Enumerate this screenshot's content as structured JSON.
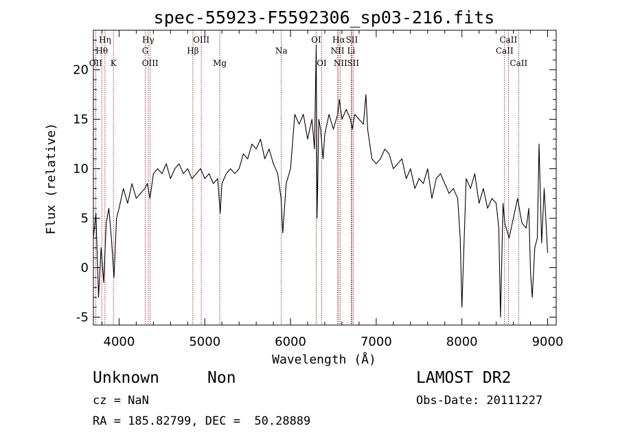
{
  "chart_data": {
    "type": "line",
    "title": "spec-55923-F5592306_sp03-216.fits",
    "xlabel": "Wavelength (Å)",
    "ylabel": "Flux (relative)",
    "xlim": [
      3700,
      9100
    ],
    "ylim": [
      -5.8,
      24
    ],
    "xticks": [
      4000,
      5000,
      6000,
      7000,
      8000,
      9000
    ],
    "yticks": [
      -5,
      0,
      5,
      10,
      15,
      20
    ],
    "grid": false,
    "series": [
      {
        "x": [
          3700,
          3730,
          3760,
          3790,
          3820,
          3850,
          3880,
          3910,
          3940,
          3970,
          4000,
          4050,
          4100,
          4150,
          4200,
          4250,
          4300,
          4330,
          4360,
          4400,
          4450,
          4500,
          4550,
          4600,
          4650,
          4700,
          4750,
          4800,
          4850,
          4900,
          4950,
          5000,
          5050,
          5100,
          5150,
          5180,
          5200,
          5250,
          5300,
          5350,
          5400,
          5450,
          5500,
          5550,
          5600,
          5650,
          5700,
          5750,
          5800,
          5850,
          5890,
          5910,
          5950,
          6000,
          6050,
          6100,
          6150,
          6200,
          6250,
          6280,
          6300,
          6310,
          6330,
          6350,
          6380,
          6400,
          6450,
          6500,
          6550,
          6570,
          6600,
          6650,
          6700,
          6720,
          6750,
          6800,
          6850,
          6880,
          6900,
          6950,
          7000,
          7050,
          7100,
          7150,
          7200,
          7250,
          7300,
          7350,
          7400,
          7450,
          7500,
          7550,
          7600,
          7650,
          7700,
          7750,
          7800,
          7850,
          7900,
          7950,
          7980,
          8000,
          8050,
          8100,
          8150,
          8200,
          8250,
          8300,
          8350,
          8400,
          8430,
          8450,
          8480,
          8500,
          8550,
          8600,
          8650,
          8700,
          8750,
          8780,
          8800,
          8820,
          8850,
          8880,
          8900,
          8930,
          8960,
          9000
        ],
        "y": [
          3.0,
          5.5,
          -3.0,
          2.0,
          -1.5,
          4.5,
          6.0,
          3.0,
          -1.0,
          5.0,
          6.0,
          8.0,
          6.5,
          8.5,
          7.0,
          7.5,
          8.0,
          8.5,
          7.0,
          9.5,
          10.0,
          9.5,
          10.5,
          9.0,
          10.0,
          10.5,
          9.5,
          10.0,
          9.0,
          9.5,
          10.0,
          9.0,
          9.5,
          8.5,
          9.0,
          5.5,
          8.5,
          9.5,
          10.0,
          9.5,
          10.0,
          11.5,
          11.0,
          12.5,
          12.0,
          13.0,
          11.0,
          12.0,
          10.5,
          9.5,
          7.0,
          3.5,
          8.5,
          10.0,
          15.5,
          14.5,
          15.5,
          13.0,
          15.0,
          12.0,
          22.5,
          5.0,
          15.0,
          14.0,
          11.0,
          13.5,
          15.5,
          14.0,
          15.5,
          17.0,
          15.0,
          16.0,
          15.0,
          14.0,
          15.5,
          15.0,
          14.5,
          17.5,
          14.0,
          11.0,
          10.5,
          11.0,
          12.0,
          11.5,
          10.0,
          10.5,
          11.0,
          9.0,
          10.0,
          8.0,
          9.0,
          8.5,
          10.0,
          7.0,
          9.0,
          9.5,
          8.5,
          7.5,
          8.0,
          7.0,
          3.0,
          -4.0,
          9.0,
          8.0,
          9.5,
          6.5,
          8.0,
          6.0,
          7.0,
          6.5,
          4.0,
          -5.0,
          6.5,
          4.5,
          3.0,
          5.0,
          7.0,
          4.5,
          4.0,
          6.0,
          -0.5,
          -3.0,
          2.0,
          3.0,
          12.5,
          2.5,
          8.0,
          1.5
        ]
      }
    ],
    "lines": [
      {
        "name": "OII",
        "x": 3727,
        "row": 3
      },
      {
        "name": "Hθ",
        "x": 3798,
        "row": 2
      },
      {
        "name": "Hη",
        "x": 3835,
        "row": 1
      },
      {
        "name": "K",
        "x": 3934,
        "row": 3
      },
      {
        "name": "Hγ",
        "x": 4340,
        "row": 1
      },
      {
        "name": "G",
        "x": 4305,
        "row": 2
      },
      {
        "name": "OIII",
        "x": 4363,
        "row": 3
      },
      {
        "name": "Hβ",
        "x": 4861,
        "row": 2
      },
      {
        "name": "OIII",
        "x": 4959,
        "row": 1
      },
      {
        "name": "Mg",
        "x": 5175,
        "row": 3
      },
      {
        "name": "Na",
        "x": 5893,
        "row": 2
      },
      {
        "name": "OI",
        "x": 6300,
        "row": 1
      },
      {
        "name": "OI",
        "x": 6364,
        "row": 3
      },
      {
        "name": "Hα",
        "x": 6563,
        "row": 1
      },
      {
        "name": "NII",
        "x": 6548,
        "row": 2
      },
      {
        "name": "NII",
        "x": 6583,
        "row": 3
      },
      {
        "name": "SII",
        "x": 6716,
        "row": 1
      },
      {
        "name": "Li",
        "x": 6708,
        "row": 2
      },
      {
        "name": "SII",
        "x": 6731,
        "row": 3
      },
      {
        "name": "CaII",
        "x": 8542,
        "row": 1
      },
      {
        "name": "CaII",
        "x": 8498,
        "row": 2
      },
      {
        "name": "CaII",
        "x": 8662,
        "row": 3
      }
    ]
  },
  "info": {
    "class_label": "Unknown",
    "subclass_label": "Non",
    "survey": "LAMOST DR2",
    "redshift": "cz = NaN",
    "obs_date": "Obs-Date: 20111227",
    "coords": "RA = 185.82799, DEC =  50.28889"
  },
  "colors": {
    "spectrum": "#000000",
    "line_marker": "#8b0000"
  }
}
